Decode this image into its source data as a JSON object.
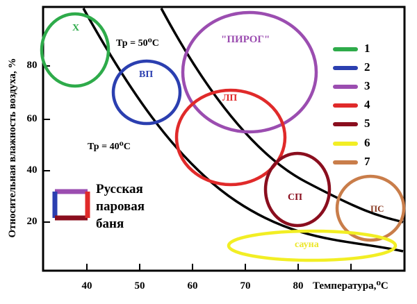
{
  "axes": {
    "ylabel": "Относительная влажность воздуха, %",
    "xlabel": "Температура,⁰С",
    "y_ticks": [
      "20",
      "40",
      "60",
      "80"
    ],
    "x_ticks": [
      "40",
      "50",
      "60",
      "70",
      "80",
      "90"
    ]
  },
  "curves": {
    "tr50": "Тр = 50⁰С",
    "tr40": "Тр = 40⁰С"
  },
  "zones": {
    "x": "Х",
    "vp": "ВП",
    "pirog": "\"ПИРОГ\"",
    "lp": "ЛП",
    "sp": "СП",
    "ps": "ПС",
    "sauna": "сауна"
  },
  "legend": [
    {
      "label": "1",
      "color": "#2eab4a"
    },
    {
      "label": "2",
      "color": "#2b3fb0"
    },
    {
      "label": "3",
      "color": "#9b4db0"
    },
    {
      "label": "4",
      "color": "#e02a2a"
    },
    {
      "label": "5",
      "color": "#8a0e1e"
    },
    {
      "label": "6",
      "color": "#f2ee24"
    },
    {
      "label": "7",
      "color": "#c97d4a"
    }
  ],
  "banya": {
    "line1": "Русская",
    "line2": "паровая",
    "line3": "баня"
  }
}
